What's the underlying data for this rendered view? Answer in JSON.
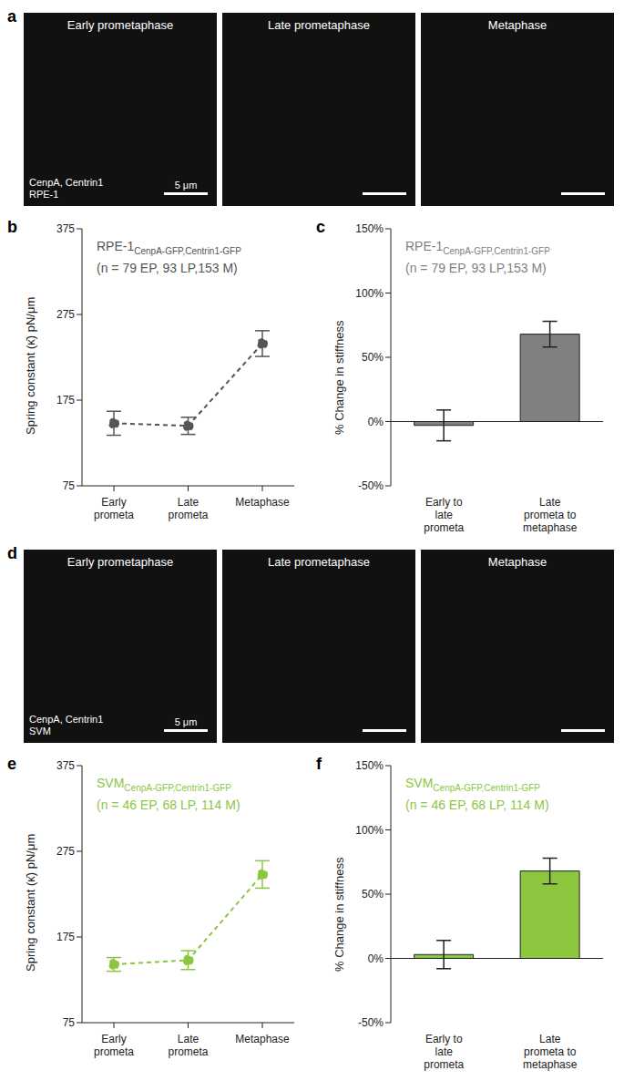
{
  "images": [
    {
      "panel": "a",
      "titles": [
        "Early prometaphase",
        "Late prometaphase",
        "Metaphase"
      ],
      "labels": [
        "CenpA, Centrin1",
        "RPE-1"
      ],
      "scale_bar": "5 μm"
    },
    {
      "panel": "d",
      "titles": [
        "Early prometaphase",
        "Late prometaphase",
        "Metaphase"
      ],
      "labels": [
        "CenpA, Centrin1",
        "SVM"
      ],
      "scale_bar": "5 μm"
    }
  ],
  "chart_data": [
    {
      "panel": "b",
      "type": "line",
      "title": "RPE-1",
      "title_sub": "CenpA-GFP,Centrin1-GFP",
      "subtitle": "(n = 79 EP, 93 LP,153 M)",
      "categories": [
        "Early\nprometa",
        "Late\nprometa",
        "Metaphase"
      ],
      "values": [
        148,
        145,
        241
      ],
      "errors": [
        14,
        10,
        15
      ],
      "color": "#555555",
      "line_style": "dashed",
      "marker": "circle",
      "y_label": "Spring constant (κ̄) pN/μm",
      "ylim": [
        75,
        375
      ],
      "yticks": [
        75,
        175,
        275,
        375
      ]
    },
    {
      "panel": "c",
      "type": "bar",
      "title": "RPE-1",
      "title_sub": "CenpA-GFP,Centrin1-GFP",
      "subtitle": "(n = 79 EP, 93 LP,153 M)",
      "categories": [
        "Early to\nlate\nprometa",
        "Late\nprometa to\nmetaphase"
      ],
      "values": [
        -3,
        68
      ],
      "errors": [
        12,
        10
      ],
      "color": "#808080",
      "y_label": "% Change in stiffness",
      "ylim": [
        -50,
        150
      ],
      "yticks": [
        {
          "value": -50,
          "label": "-50%"
        },
        {
          "value": 0,
          "label": "0%"
        },
        {
          "value": 50,
          "label": "50%"
        },
        {
          "value": 100,
          "label": "100%"
        },
        {
          "value": 150,
          "label": "150%"
        }
      ]
    },
    {
      "panel": "e",
      "type": "line",
      "title": "SVM",
      "title_sub": "CenpA-GFP,Centrin1-GFP",
      "subtitle": "(n = 46 EP, 68 LP, 114 M)",
      "categories": [
        "Early\nprometa",
        "Late\nprometa",
        "Metaphase"
      ],
      "values": [
        143,
        148,
        248
      ],
      "errors": [
        8,
        11,
        16
      ],
      "color": "#8cc63f",
      "line_style": "dashed",
      "marker": "circle",
      "y_label": "Spring constant (κ̄) pN/μm",
      "ylim": [
        75,
        375
      ],
      "yticks": [
        75,
        175,
        275,
        375
      ]
    },
    {
      "panel": "f",
      "type": "bar",
      "title": "SVM",
      "title_sub": "CenpA-GFP,Centrin1-GFP",
      "subtitle": "(n = 46 EP, 68 LP, 114 M)",
      "categories": [
        "Early to\nlate\nprometa",
        "Late\nprometa to\nmetaphase"
      ],
      "values": [
        3,
        68
      ],
      "errors": [
        11,
        10
      ],
      "color": "#8cc63f",
      "y_label": "% Change in stiffness",
      "ylim": [
        -50,
        150
      ],
      "yticks": [
        {
          "value": -50,
          "label": "-50%"
        },
        {
          "value": 0,
          "label": "0%"
        },
        {
          "value": 50,
          "label": "50%"
        },
        {
          "value": 100,
          "label": "100%"
        },
        {
          "value": 150,
          "label": "150%"
        }
      ]
    }
  ]
}
